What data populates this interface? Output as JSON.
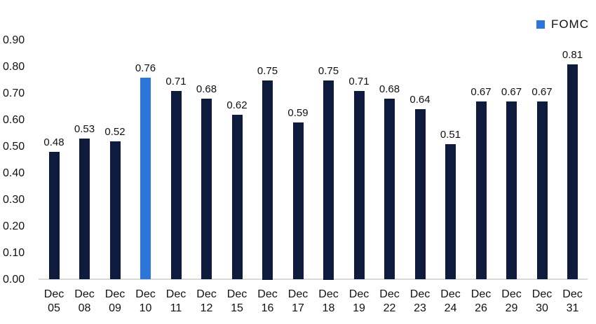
{
  "chart_data": {
    "type": "bar",
    "title": "",
    "xlabel": "",
    "ylabel": "",
    "categories": [
      "Dec 05",
      "Dec 08",
      "Dec 09",
      "Dec 10",
      "Dec 11",
      "Dec 12",
      "Dec 15",
      "Dec 16",
      "Dec 17",
      "Dec 18",
      "Dec 19",
      "Dec 22",
      "Dec 23",
      "Dec 24",
      "Dec 26",
      "Dec 29",
      "Dec 30",
      "Dec 31"
    ],
    "values": [
      0.48,
      0.53,
      0.52,
      0.76,
      0.71,
      0.68,
      0.62,
      0.75,
      0.59,
      0.75,
      0.71,
      0.68,
      0.64,
      0.51,
      0.67,
      0.67,
      0.67,
      0.81
    ],
    "value_labels": [
      "0.48",
      "0.53",
      "0.52",
      "0.76",
      "0.71",
      "0.68",
      "0.62",
      "0.75",
      "0.59",
      "0.75",
      "0.71",
      "0.68",
      "0.64",
      "0.51",
      "0.67",
      "0.67",
      "0.67",
      "0.81"
    ],
    "y_ticks": [
      "0.00",
      "0.10",
      "0.20",
      "0.30",
      "0.40",
      "0.50",
      "0.60",
      "0.70",
      "0.80",
      "0.90"
    ],
    "ylim": [
      0,
      0.9
    ],
    "grid": false,
    "legend": [
      {
        "label": "FOMC",
        "color": "#2e75db"
      }
    ],
    "legend_position": "top-right",
    "highlight": {
      "label": "FOMC",
      "category": "Dec 10",
      "index": 3
    },
    "colors": {
      "bar": "#0e1b3c",
      "fomc": "#2e75db",
      "axis_line": "#d9d9d9",
      "text": "#111111",
      "background": "#ffffff"
    }
  }
}
